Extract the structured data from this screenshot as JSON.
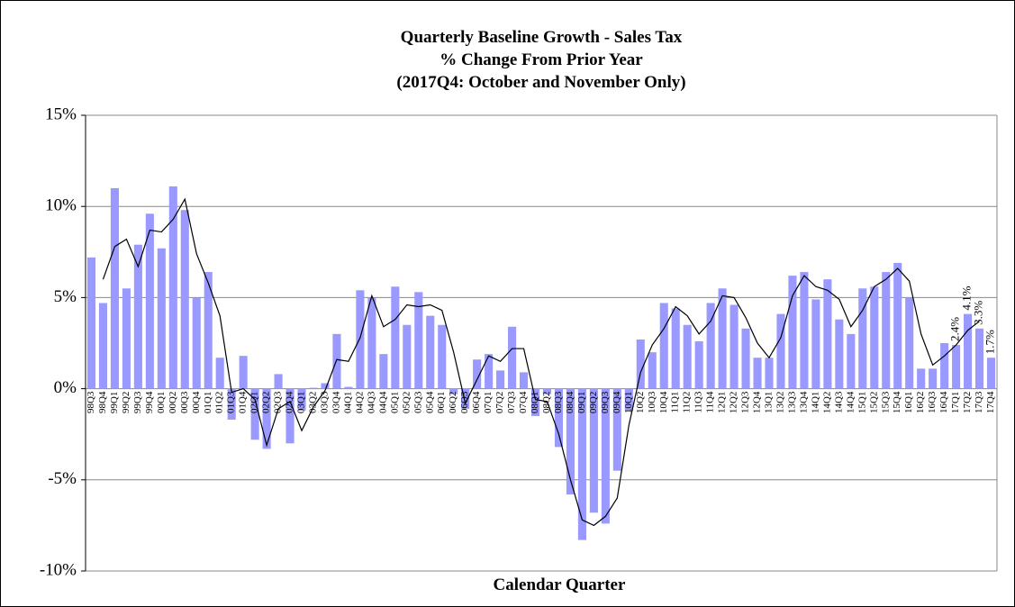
{
  "chart_data": {
    "type": "bar",
    "title": [
      "Quarterly Baseline Growth - Sales Tax",
      "% Change From Prior Year",
      "(2017Q4: October and November Only)"
    ],
    "x_label": "Calendar Quarter",
    "categories": [
      "98Q3",
      "98Q4",
      "99Q1",
      "99Q2",
      "99Q3",
      "99Q4",
      "00Q1",
      "00Q2",
      "00Q3",
      "00Q4",
      "01Q1",
      "01Q2",
      "01Q3",
      "01Q4",
      "02Q1",
      "02Q2",
      "02Q3",
      "02Q4",
      "03Q1",
      "03Q2",
      "03Q3",
      "03Q4",
      "04Q1",
      "04Q2",
      "04Q3",
      "04Q4",
      "05Q1",
      "05Q2",
      "05Q3",
      "05Q4",
      "06Q1",
      "06Q2",
      "06Q3",
      "06Q4",
      "07Q1",
      "07Q2",
      "07Q3",
      "07Q4",
      "08Q1",
      "08Q2",
      "08Q3",
      "08Q4",
      "09Q1",
      "09Q2",
      "09Q3",
      "09Q4",
      "10Q1",
      "10Q2",
      "10Q3",
      "10Q4",
      "11Q1",
      "11Q2",
      "11Q3",
      "11Q4",
      "12Q1",
      "12Q2",
      "12Q3",
      "12Q4",
      "13Q1",
      "13Q2",
      "13Q3",
      "13Q4",
      "14Q1",
      "14Q2",
      "14Q3",
      "14Q4",
      "15Q1",
      "15Q2",
      "15Q3",
      "15Q4",
      "16Q1",
      "16Q2",
      "16Q3",
      "16Q4",
      "17Q1",
      "17Q2",
      "17Q3",
      "17Q4"
    ],
    "series": [
      {
        "type": "bar",
        "color": "#9999ff",
        "values": [
          7.2,
          4.7,
          11.0,
          5.5,
          7.9,
          9.6,
          7.7,
          11.1,
          9.8,
          5.0,
          6.4,
          1.7,
          -1.7,
          1.8,
          -2.8,
          -3.3,
          0.8,
          -3.0,
          -1.2,
          0.05,
          0.3,
          3.0,
          0.1,
          5.4,
          5.0,
          1.9,
          5.6,
          3.5,
          5.3,
          4.0,
          3.5,
          -0.3,
          -1.1,
          1.6,
          1.9,
          1.0,
          3.4,
          0.9,
          -1.5,
          -0.3,
          -3.2,
          -5.8,
          -8.3,
          -6.8,
          -7.4,
          -4.5,
          -1.2,
          2.7,
          2.0,
          4.7,
          4.4,
          3.5,
          2.6,
          4.7,
          5.5,
          4.6,
          3.3,
          1.7,
          1.7,
          4.1,
          6.2,
          6.4,
          4.9,
          6.0,
          3.8,
          3.0,
          5.5,
          5.6,
          6.4,
          6.9,
          5.0,
          1.1,
          1.1,
          2.5,
          2.4,
          4.1,
          3.3,
          1.7
        ],
        "value_labels": [
          null,
          null,
          null,
          null,
          null,
          null,
          null,
          null,
          null,
          null,
          null,
          null,
          null,
          null,
          null,
          null,
          null,
          null,
          null,
          null,
          null,
          null,
          null,
          null,
          null,
          null,
          null,
          null,
          null,
          null,
          null,
          null,
          null,
          null,
          null,
          null,
          null,
          null,
          null,
          null,
          null,
          null,
          null,
          null,
          null,
          null,
          null,
          null,
          null,
          null,
          null,
          null,
          null,
          null,
          null,
          null,
          null,
          null,
          null,
          null,
          null,
          null,
          null,
          null,
          null,
          null,
          null,
          null,
          null,
          null,
          null,
          null,
          null,
          null,
          "2.4%",
          "4.1%",
          "3.3%",
          "1.7%"
        ]
      },
      {
        "type": "line",
        "color": "#000000",
        "values": [
          null,
          6.0,
          7.8,
          8.2,
          6.7,
          8.7,
          8.6,
          9.3,
          10.4,
          7.4,
          5.8,
          4.0,
          -0.2,
          0.0,
          -0.6,
          -3.1,
          -1.1,
          -0.7,
          -2.3,
          -1.0,
          -0.1,
          1.6,
          1.5,
          2.8,
          5.1,
          3.4,
          3.8,
          4.6,
          4.5,
          4.6,
          4.3,
          2.0,
          -0.8,
          0.5,
          1.8,
          1.5,
          2.2,
          2.2,
          -0.6,
          -0.7,
          -2.5,
          -5.0,
          -7.2,
          -7.5,
          -7.0,
          -6.0,
          -2.0,
          0.9,
          2.4,
          3.3,
          4.5,
          4.0,
          3.0,
          3.7,
          5.1,
          5.0,
          3.9,
          2.5,
          1.7,
          2.8,
          5.1,
          6.2,
          5.6,
          5.4,
          4.9,
          3.4,
          4.3,
          5.6,
          6.0,
          6.6,
          5.9,
          3.0,
          1.3,
          1.8,
          2.4,
          3.2,
          3.7,
          null
        ]
      }
    ],
    "ylim": [
      -10,
      15
    ],
    "yticks": [
      {
        "value": -10,
        "label": "-10%"
      },
      {
        "value": -5,
        "label": "-5%"
      },
      {
        "value": 0,
        "label": "0%"
      },
      {
        "value": 5,
        "label": "5%"
      },
      {
        "value": 10,
        "label": "10%"
      },
      {
        "value": 15,
        "label": "15%"
      }
    ],
    "grid": true
  }
}
